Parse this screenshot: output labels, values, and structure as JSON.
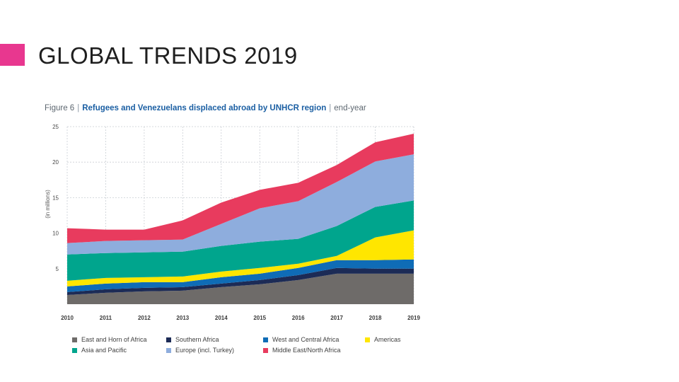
{
  "slide": {
    "title": "GLOBAL TRENDS 2019",
    "accent_color": "#e8378f"
  },
  "caption": {
    "figure": "Figure 6",
    "separator": "|",
    "main": "Refugees and Venezuelans displaced abroad by UNHCR region",
    "suffix": "end-year"
  },
  "chart_data": {
    "type": "area",
    "stacked": true,
    "x": [
      2010,
      2011,
      2012,
      2013,
      2014,
      2015,
      2016,
      2017,
      2018,
      2019
    ],
    "x_tick_labels": [
      "2010",
      "2011",
      "2012",
      "2013",
      "2014",
      "2015",
      "2016",
      "2017",
      "2018",
      "2019"
    ],
    "ylim": [
      0,
      25
    ],
    "y_ticks": [
      5,
      10,
      15,
      20,
      25
    ],
    "y_tick_labels": [
      "5",
      "10",
      "15",
      "20",
      "25"
    ],
    "ylabel": "(in millions)",
    "grid": true,
    "legend_position": "bottom",
    "series": [
      {
        "name": "East and Horn of Africa",
        "color": "#6e6b69",
        "values": [
          1.3,
          1.6,
          1.8,
          1.9,
          2.4,
          2.8,
          3.4,
          4.3,
          4.3,
          4.3
        ]
      },
      {
        "name": "Southern Africa",
        "color": "#1c2b56",
        "values": [
          0.4,
          0.5,
          0.5,
          0.5,
          0.5,
          0.6,
          0.7,
          0.8,
          0.7,
          0.7
        ]
      },
      {
        "name": "West and Central Africa",
        "color": "#0f6cb6",
        "values": [
          0.8,
          0.8,
          0.8,
          0.7,
          0.9,
          0.9,
          1.0,
          1.1,
          1.2,
          1.3
        ]
      },
      {
        "name": "Americas",
        "color": "#ffe600",
        "values": [
          0.8,
          0.8,
          0.7,
          0.8,
          0.8,
          0.8,
          0.6,
          0.6,
          3.2,
          4.1
        ]
      },
      {
        "name": "Asia and Pacific",
        "color": "#00a58d",
        "values": [
          3.7,
          3.5,
          3.5,
          3.5,
          3.6,
          3.7,
          3.5,
          4.2,
          4.3,
          4.2
        ]
      },
      {
        "name": "Europe (incl. Turkey)",
        "color": "#8ead dd",
        "values": [
          1.6,
          1.7,
          1.7,
          1.7,
          3.1,
          4.7,
          5.3,
          6.2,
          6.4,
          6.5
        ]
      },
      {
        "name": "Middle East/North Africa",
        "color": "#e83b5e",
        "values": [
          2.1,
          1.6,
          1.5,
          2.7,
          3.0,
          2.6,
          2.6,
          2.4,
          2.7,
          2.9
        ]
      }
    ]
  }
}
